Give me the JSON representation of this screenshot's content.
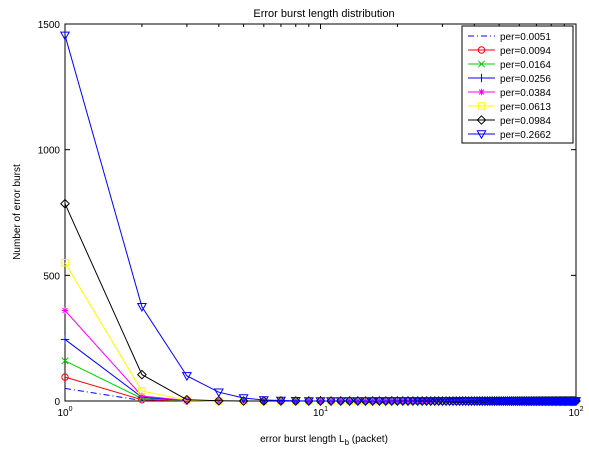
{
  "chart_data": {
    "type": "line",
    "title": "Error burst length distribution",
    "xlabel": {
      "prefix": "error burst length L",
      "subscript": "b",
      "suffix": " (packet)"
    },
    "ylabel": "Number of error burst",
    "xscale": "log",
    "xlim": [
      1,
      100
    ],
    "ylim": [
      0,
      1500
    ],
    "x_ticks": [
      {
        "value": 1,
        "base": "10",
        "exp": "0"
      },
      {
        "value": 10,
        "base": "10",
        "exp": "1"
      },
      {
        "value": 100,
        "base": "10",
        "exp": "2"
      }
    ],
    "y_ticks": [
      {
        "value": 0,
        "label": "0"
      },
      {
        "value": 500,
        "label": "500"
      },
      {
        "value": 1000,
        "label": "1000"
      },
      {
        "value": 1500,
        "label": "1500"
      }
    ],
    "grid": false,
    "legend_position": "top-right",
    "x": [
      1,
      2,
      3,
      4,
      5,
      6,
      7,
      8,
      9,
      10,
      11,
      12,
      13,
      14,
      15,
      16,
      17,
      18,
      19,
      20,
      21,
      22,
      23,
      24,
      25,
      26,
      27,
      28,
      29,
      30,
      31,
      32,
      33,
      34,
      35,
      36,
      37,
      38,
      39,
      40,
      41,
      42,
      43,
      44,
      45,
      46,
      47,
      48,
      49,
      50,
      51,
      52,
      53,
      54,
      55,
      56,
      57,
      58,
      59,
      60,
      61,
      62,
      63,
      64,
      65,
      66,
      67,
      68,
      69,
      70,
      71,
      72,
      73,
      74,
      75,
      76,
      77,
      78,
      79,
      80,
      81,
      82,
      83,
      84,
      85,
      86,
      87,
      88,
      89,
      90,
      91,
      92,
      93,
      94,
      95,
      96,
      97,
      98,
      99,
      100
    ],
    "series": [
      {
        "name": "per=0.0051",
        "color": "#0000ff",
        "marker": "dash",
        "linestyle": "dashdot",
        "head": [
          50,
          2
        ]
      },
      {
        "name": "per=0.0094",
        "color": "#ff0000",
        "marker": "circle",
        "linestyle": "solid",
        "head": [
          95,
          5,
          1
        ]
      },
      {
        "name": "per=0.0164",
        "color": "#00cc00",
        "marker": "x",
        "linestyle": "solid",
        "head": [
          160,
          10,
          1
        ]
      },
      {
        "name": "per=0.0256",
        "color": "#0000ff",
        "marker": "plus",
        "linestyle": "solid",
        "head": [
          245,
          15,
          2
        ]
      },
      {
        "name": "per=0.0384",
        "color": "#ff00ff",
        "marker": "star",
        "linestyle": "solid",
        "head": [
          360,
          20,
          2
        ]
      },
      {
        "name": "per=0.0613",
        "color": "#ffff00",
        "marker": "square",
        "linestyle": "solid",
        "head": [
          550,
          40,
          3
        ]
      },
      {
        "name": "per=0.0984",
        "color": "#000000",
        "marker": "diamond",
        "linestyle": "solid",
        "head": [
          785,
          105,
          5,
          1
        ]
      },
      {
        "name": "per=0.2662",
        "color": "#0000ff",
        "marker": "triangle-down",
        "linestyle": "solid",
        "head": [
          1455,
          375,
          100,
          35,
          12,
          4,
          2,
          1
        ]
      }
    ]
  }
}
